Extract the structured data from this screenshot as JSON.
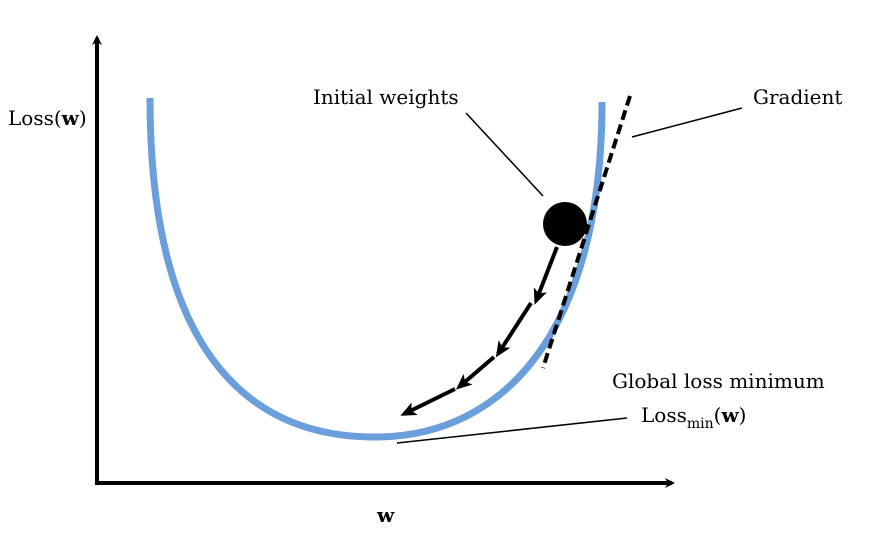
{
  "labels": {
    "y_axis": "Loss(",
    "y_axis_var": "w",
    "y_axis_close": ")",
    "x_axis": "w",
    "initial": "Initial weights",
    "gradient": "Gradient",
    "global_min": "Global loss minimum",
    "loss_min_pre": "Loss",
    "loss_min_sub": "min",
    "loss_min_open": "(",
    "loss_min_var": "w",
    "loss_min_close": ")"
  },
  "colors": {
    "curve": "#6a9fdc",
    "axis": "#000000",
    "ball": "#000000",
    "arrows": "#000000",
    "gradient_line": "#000000"
  },
  "shapes": {
    "curve": "parabola",
    "gradient_line": "dashed-tangent",
    "descent_steps": 4
  }
}
